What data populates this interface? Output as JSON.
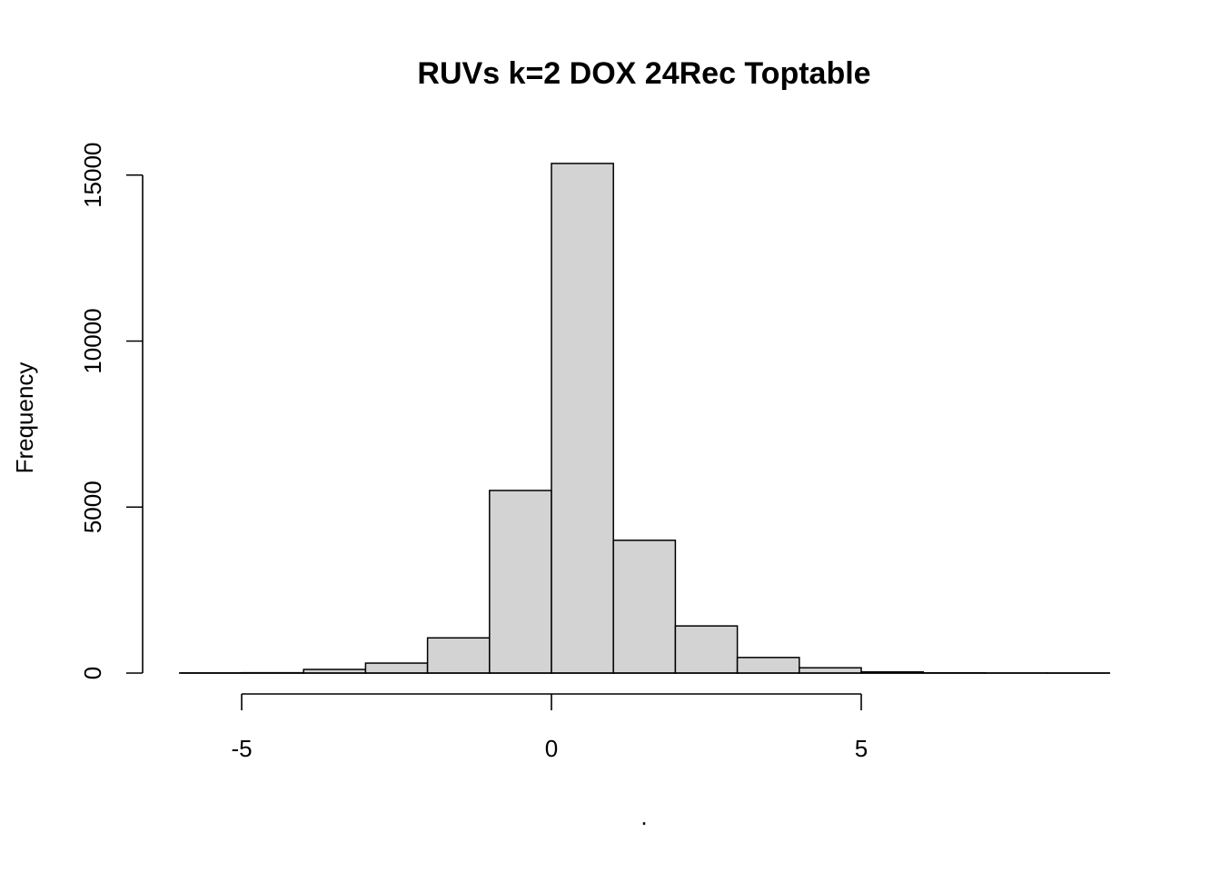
{
  "chart_data": {
    "type": "bar",
    "title": "RUVs k=2 DOX 24Rec Toptable",
    "xlabel": ".",
    "ylabel": "Frequency",
    "bin_edges": [
      -6,
      -5,
      -4,
      -3,
      -2,
      -1,
      0,
      1,
      2,
      3,
      4,
      5,
      6,
      7,
      8,
      9
    ],
    "values": [
      5,
      10,
      110,
      300,
      1060,
      5500,
      15350,
      4000,
      1420,
      470,
      160,
      35,
      8,
      3,
      2
    ],
    "x_ticks": [
      -5,
      0,
      5
    ],
    "x_tick_labels": [
      "-5",
      "0",
      "5"
    ],
    "y_ticks": [
      0,
      5000,
      10000,
      15000
    ],
    "y_tick_labels": [
      "0",
      "5000",
      "10000",
      "15000"
    ],
    "xlim": [
      -6,
      9
    ],
    "ylim": [
      0,
      15350
    ],
    "grid": false,
    "colors": {
      "bar_fill": "#d3d3d3",
      "bar_stroke": "#000000"
    }
  }
}
